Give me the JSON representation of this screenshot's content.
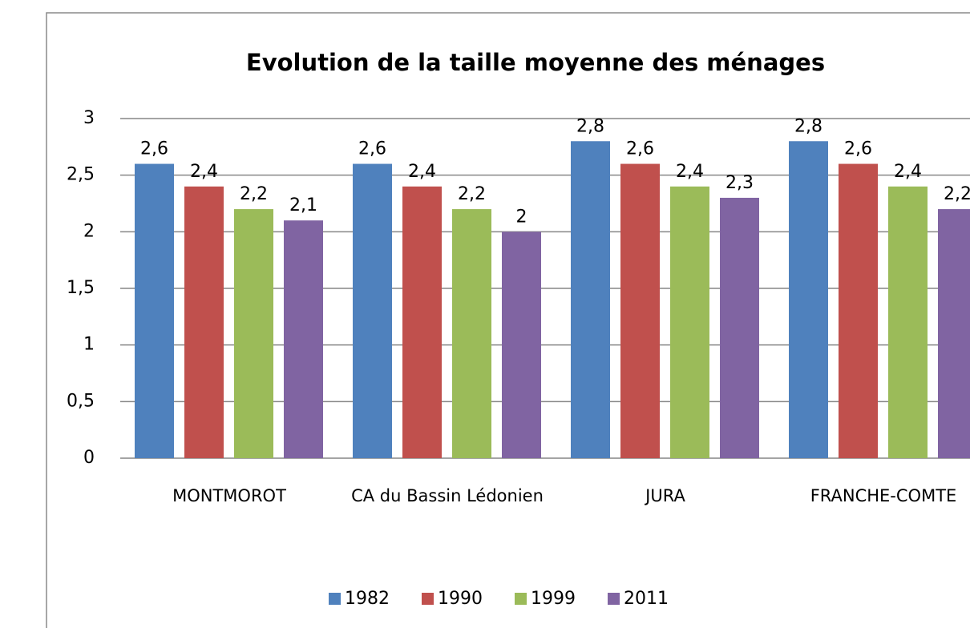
{
  "chart_data": {
    "type": "bar",
    "title": "Evolution de la taille moyenne des ménages",
    "categories": [
      "MONTMOROT",
      "CA du Bassin Lédonien",
      "JURA",
      "FRANCHE-COMTE"
    ],
    "series": [
      {
        "name": "1982",
        "color": "#4f81bd",
        "values": [
          2.6,
          2.6,
          2.8,
          2.8
        ],
        "value_labels": [
          "2,6",
          "2,6",
          "2,8",
          "2,8"
        ]
      },
      {
        "name": "1990",
        "color": "#c0504d",
        "values": [
          2.4,
          2.4,
          2.6,
          2.6
        ],
        "value_labels": [
          "2,4",
          "2,4",
          "2,6",
          "2,6"
        ]
      },
      {
        "name": "1999",
        "color": "#9bbb59",
        "values": [
          2.2,
          2.2,
          2.4,
          2.4
        ],
        "value_labels": [
          "2,2",
          "2,2",
          "2,4",
          "2,4"
        ]
      },
      {
        "name": "2011",
        "color": "#8064a2",
        "values": [
          2.1,
          2.0,
          2.3,
          2.2
        ],
        "value_labels": [
          "2,1",
          "2",
          "2,3",
          "2,2"
        ]
      }
    ],
    "ylim": [
      0,
      3
    ],
    "yticks": [
      0,
      {
        "value": 0.5,
        "label": "0,5"
      },
      1,
      {
        "value": 1.5,
        "label": "1,5"
      },
      2,
      {
        "value": 2.5,
        "label": "2,5"
      },
      3
    ],
    "grid": true,
    "legend": "bottom"
  }
}
